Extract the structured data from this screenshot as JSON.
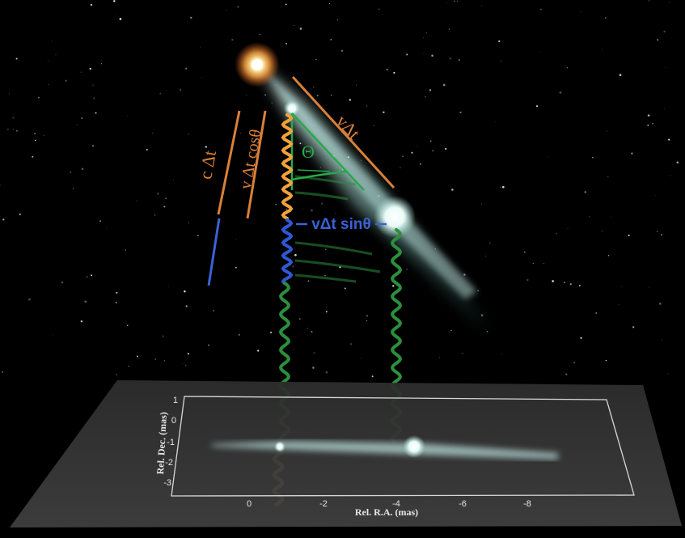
{
  "labels": {
    "c_delta_t": "c Δt",
    "v_delta_t_cos": "v Δt cosθ",
    "v_delta_t": "vΔt",
    "theta": "Θ",
    "v_delta_t_sin": "vΔt sinθ"
  },
  "plot": {
    "xlabel": "Rel. R.A. (mas)",
    "ylabel": "Rel. Dec. (mas)",
    "x_ticks": [
      "0",
      "-2",
      "-4",
      "-6",
      "-8"
    ],
    "y_ticks": [
      "1",
      "0",
      "-1",
      "-2",
      "-3"
    ]
  },
  "colors": {
    "background": "#000000",
    "c_delta_t_line": "#d9803a",
    "cos_line": "#d9803a",
    "v_delta_t_line": "#d9803a",
    "theta_color": "#29a84a",
    "sin_color": "#3a62d6",
    "wave_orange": "#f2a23a",
    "wave_blue": "#2d59d6",
    "wave_green": "#2b8f3c",
    "jet": "#bfe6e2",
    "star_core": "#fff4c0",
    "panel": "#3c3c3c"
  },
  "icons": {
    "star": "glowing-star-icon",
    "jet": "jet-plume-icon",
    "blob": "knot-blob-icon"
  }
}
